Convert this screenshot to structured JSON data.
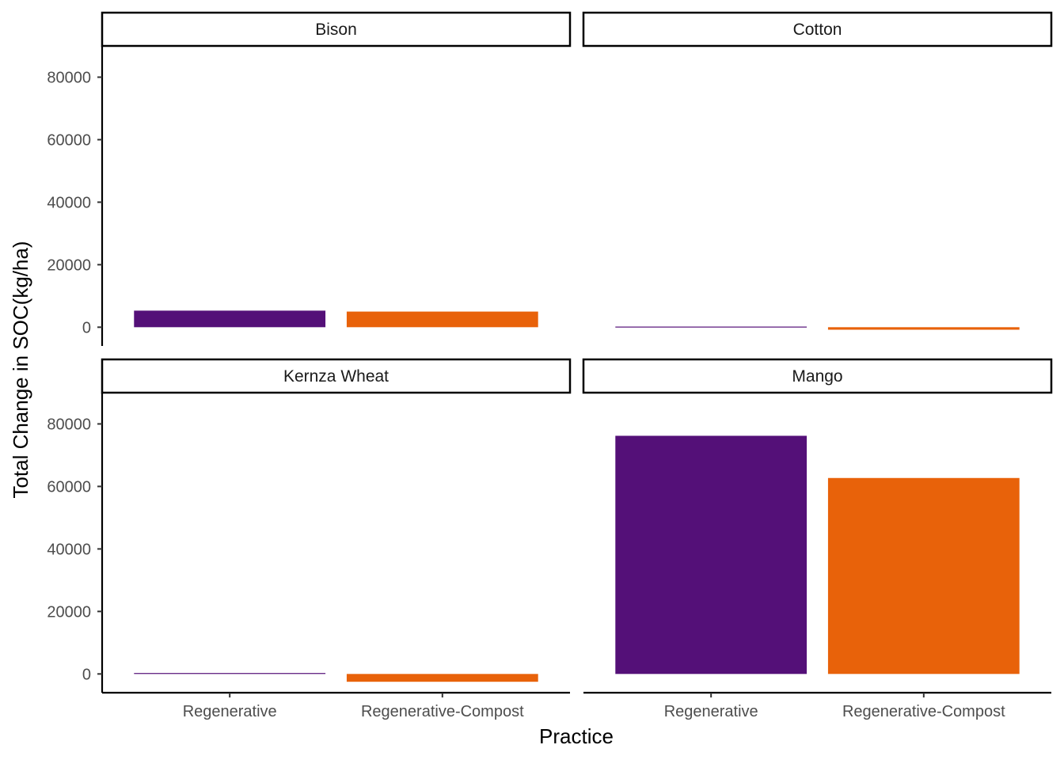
{
  "chart_data": {
    "type": "bar",
    "xlabel": "Practice",
    "ylabel": "Total Change in SOC(kg/ha)",
    "categories": [
      "Regenerative",
      "Regenerative-Compost"
    ],
    "ylim": [
      -6000,
      90000
    ],
    "yticks": [
      0,
      20000,
      40000,
      60000,
      80000
    ],
    "ytick_labels": [
      "0",
      "20000",
      "40000",
      "60000",
      "80000"
    ],
    "grid": false,
    "legend": "none",
    "colors": {
      "Regenerative": "#541078",
      "Regenerative-Compost": "#E8620A"
    },
    "facets": [
      {
        "name": "Bison",
        "values": [
          5300,
          5000
        ]
      },
      {
        "name": "Cotton",
        "values": [
          200,
          -800
        ]
      },
      {
        "name": "Kernza Wheat",
        "values": [
          300,
          -2500
        ]
      },
      {
        "name": "Mango",
        "values": [
          76200,
          62700
        ]
      }
    ]
  }
}
